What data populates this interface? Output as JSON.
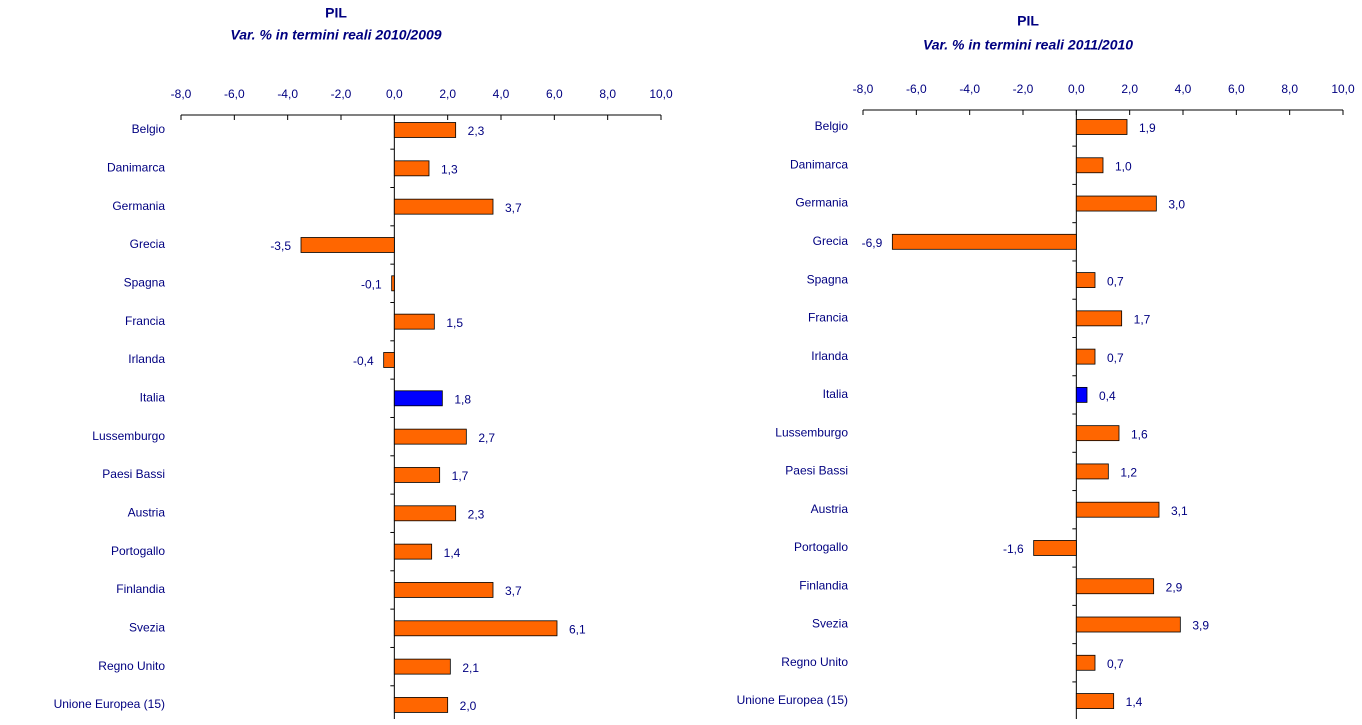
{
  "chart_data": [
    {
      "type": "bar",
      "orientation": "horizontal",
      "title": "PIL",
      "subtitle": "Var. % in termini reali 2010/2009",
      "categories": [
        "Belgio",
        "Danimarca",
        "Germania",
        "Grecia",
        "Spagna",
        "Francia",
        "Irlanda",
        "Italia",
        "Lussemburgo",
        "Paesi Bassi",
        "Austria",
        "Portogallo",
        "Finlandia",
        "Svezia",
        "Regno Unito",
        "Unione Europea (15)"
      ],
      "values": [
        2.3,
        1.3,
        3.7,
        -3.5,
        -0.1,
        1.5,
        -0.4,
        1.8,
        2.7,
        1.7,
        2.3,
        1.4,
        3.7,
        6.1,
        2.1,
        2.0
      ],
      "value_labels": [
        "2,3",
        "1,3",
        "3,7",
        "-3,5",
        "-0,1",
        "1,5",
        "-0,4",
        "1,8",
        "2,7",
        "1,7",
        "2,3",
        "1,4",
        "3,7",
        "6,1",
        "2,1",
        "2,0"
      ],
      "colors": [
        "#ff6600",
        "#ff6600",
        "#ff6600",
        "#ff6600",
        "#ff6600",
        "#ff6600",
        "#ff6600",
        "#0000ff",
        "#ff6600",
        "#ff6600",
        "#ff6600",
        "#ff6600",
        "#ff6600",
        "#ff6600",
        "#ff6600",
        "#ff6600"
      ],
      "xlim": [
        -8,
        10
      ],
      "xticks": [
        {
          "value": -8,
          "label": "-8,0"
        },
        {
          "value": -6,
          "label": "-6,0"
        },
        {
          "value": -4,
          "label": "-4,0"
        },
        {
          "value": -2,
          "label": "-2,0"
        },
        {
          "value": 0,
          "label": "0,0"
        },
        {
          "value": 2,
          "label": "2,0"
        },
        {
          "value": 4,
          "label": "4,0"
        },
        {
          "value": 6,
          "label": "6,0"
        },
        {
          "value": 8,
          "label": "8,0"
        },
        {
          "value": 10,
          "label": "10,0"
        }
      ]
    },
    {
      "type": "bar",
      "orientation": "horizontal",
      "title": "PIL",
      "subtitle": "Var. % in termini reali 2011/2010",
      "categories": [
        "Belgio",
        "Danimarca",
        "Germania",
        "Grecia",
        "Spagna",
        "Francia",
        "Irlanda",
        "Italia",
        "Lussemburgo",
        "Paesi Bassi",
        "Austria",
        "Portogallo",
        "Finlandia",
        "Svezia",
        "Regno Unito",
        "Unione Europea (15)"
      ],
      "values": [
        1.9,
        1.0,
        3.0,
        -6.9,
        0.7,
        1.7,
        0.7,
        0.4,
        1.6,
        1.2,
        3.1,
        -1.6,
        2.9,
        3.9,
        0.7,
        1.4
      ],
      "value_labels": [
        "1,9",
        "1,0",
        "3,0",
        "-6,9",
        "0,7",
        "1,7",
        "0,7",
        "0,4",
        "1,6",
        "1,2",
        "3,1",
        "-1,6",
        "2,9",
        "3,9",
        "0,7",
        "1,4"
      ],
      "colors": [
        "#ff6600",
        "#ff6600",
        "#ff6600",
        "#ff6600",
        "#ff6600",
        "#ff6600",
        "#ff6600",
        "#0000ff",
        "#ff6600",
        "#ff6600",
        "#ff6600",
        "#ff6600",
        "#ff6600",
        "#ff6600",
        "#ff6600",
        "#ff6600"
      ],
      "xlim": [
        -8,
        10
      ],
      "xticks": [
        {
          "value": -8,
          "label": "-8,0"
        },
        {
          "value": -6,
          "label": "-6,0"
        },
        {
          "value": -4,
          "label": "-4,0"
        },
        {
          "value": -2,
          "label": "-2,0"
        },
        {
          "value": 0,
          "label": "0,0"
        },
        {
          "value": 2,
          "label": "2,0"
        },
        {
          "value": 4,
          "label": "4,0"
        },
        {
          "value": 6,
          "label": "6,0"
        },
        {
          "value": 8,
          "label": "8,0"
        },
        {
          "value": 10,
          "label": "10,0"
        }
      ]
    }
  ]
}
